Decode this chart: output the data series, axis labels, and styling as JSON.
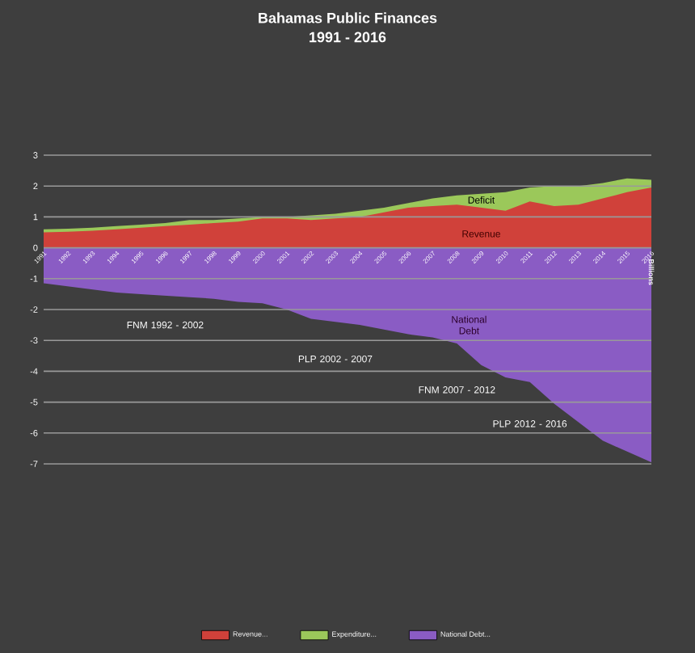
{
  "chart_data": {
    "type": "area",
    "title": "Bahamas Public Finances",
    "subtitle": "1991 - 2016",
    "categories": [
      "1991",
      "1992",
      "1993",
      "1994",
      "1995",
      "1996",
      "1997",
      "1998",
      "1999",
      "2000",
      "2001",
      "2002",
      "2003",
      "2004",
      "2005",
      "2006",
      "2007",
      "2008",
      "2009",
      "2010",
      "2011",
      "2012",
      "2013",
      "2014",
      "2015",
      "2016"
    ],
    "series": [
      {
        "name": "Revenue...",
        "color": "#d0413a",
        "values": [
          0.5,
          0.52,
          0.55,
          0.6,
          0.65,
          0.7,
          0.75,
          0.8,
          0.85,
          0.95,
          0.95,
          0.9,
          0.95,
          1.0,
          1.15,
          1.3,
          1.35,
          1.4,
          1.3,
          1.2,
          1.5,
          1.35,
          1.4,
          1.6,
          1.8,
          1.95
        ]
      },
      {
        "name": "Expenditure...",
        "color": "#9bc85a",
        "values": [
          0.6,
          0.62,
          0.65,
          0.7,
          0.75,
          0.8,
          0.9,
          0.9,
          0.95,
          1.0,
          1.0,
          1.05,
          1.1,
          1.2,
          1.3,
          1.45,
          1.6,
          1.7,
          1.75,
          1.8,
          1.95,
          2.0,
          2.0,
          2.1,
          2.25,
          2.2
        ]
      },
      {
        "name": "National Debt...",
        "color": "#8a5cc4",
        "values": [
          -1.15,
          -1.25,
          -1.35,
          -1.45,
          -1.5,
          -1.55,
          -1.6,
          -1.65,
          -1.75,
          -1.8,
          -2.0,
          -2.3,
          -2.4,
          -2.5,
          -2.65,
          -2.8,
          -2.9,
          -3.1,
          -3.8,
          -4.2,
          -4.35,
          -5.05,
          -5.65,
          -6.25,
          -6.6,
          -6.95
        ]
      }
    ],
    "ylim": [
      -7,
      3
    ],
    "yticks": [
      -7,
      -6,
      -5,
      -4,
      -3,
      -2,
      -1,
      0,
      1,
      2,
      3
    ],
    "grid": "y",
    "legend": "bottom",
    "y2label": "Billions",
    "annotations": [
      "Deficit",
      "Revenue",
      "National Debt",
      "FNM 1992 - 2002",
      "PLP 2002 - 2007",
      "FNM 2007 - 2012",
      "PLP 2012 - 2016"
    ]
  }
}
